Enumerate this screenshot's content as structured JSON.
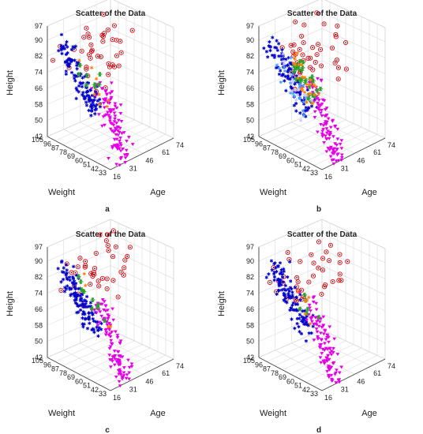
{
  "chart_data": [
    {
      "type": "scatter",
      "projection": "3d",
      "title": "Scatter of the Data",
      "panel_label": "a",
      "xlabel": "Age",
      "ylabel": "Weight",
      "zlabel": "Height",
      "x_ticks": [
        16,
        31,
        46,
        61,
        74
      ],
      "y_ticks": [
        33,
        42,
        51,
        60,
        69,
        78,
        87,
        96,
        105
      ],
      "z_ticks": [
        42,
        50,
        58,
        66,
        74,
        82,
        90,
        97
      ],
      "xlim": [
        16,
        74
      ],
      "ylim": [
        33,
        105
      ],
      "zlim": [
        42,
        97
      ],
      "grid": true,
      "series": [
        {
          "marker": "circled-dot",
          "color": "#e8000b",
          "count": 40
        },
        {
          "marker": "asterisk",
          "color": "#0000c8",
          "count": 120
        },
        {
          "marker": "triangle-down",
          "color": "#e600e6",
          "count": 110
        },
        {
          "marker": "star",
          "color": "#2ca02c",
          "count": 8
        },
        {
          "marker": "asterisk",
          "color": "#ff7f0e",
          "count": 8
        }
      ]
    },
    {
      "type": "scatter",
      "projection": "3d",
      "title": "Scatter of the Data",
      "panel_label": "b",
      "xlabel": "Age",
      "ylabel": "Weight",
      "zlabel": "Height",
      "x_ticks": [
        16,
        31,
        46,
        61,
        74
      ],
      "y_ticks": [
        33,
        42,
        51,
        60,
        69,
        78,
        87,
        96,
        105
      ],
      "z_ticks": [
        42,
        50,
        58,
        66,
        74,
        82,
        90,
        97
      ],
      "xlim": [
        16,
        74
      ],
      "ylim": [
        33,
        105
      ],
      "zlim": [
        42,
        97
      ],
      "grid": true,
      "series": [
        {
          "marker": "circled-dot",
          "color": "#e8000b",
          "count": 45
        },
        {
          "marker": "asterisk",
          "color": "#0000c8",
          "count": 100
        },
        {
          "marker": "triangle-down",
          "color": "#e600e6",
          "count": 110
        },
        {
          "marker": "star",
          "color": "#2ca02c",
          "count": 30
        },
        {
          "marker": "asterisk",
          "color": "#ff7f0e",
          "count": 25
        },
        {
          "marker": "asterisk",
          "color": "#4aa3ff",
          "count": 20
        },
        {
          "marker": "asterisk",
          "color": "#c7c7ff",
          "count": 15
        }
      ]
    },
    {
      "type": "scatter",
      "projection": "3d",
      "title": "Scatter of the Data",
      "panel_label": "c",
      "xlabel": "Age",
      "ylabel": "Weight",
      "zlabel": "Height",
      "x_ticks": [
        16,
        31,
        46,
        61,
        74
      ],
      "y_ticks": [
        33,
        42,
        51,
        60,
        69,
        78,
        87,
        96,
        105
      ],
      "z_ticks": [
        42,
        50,
        58,
        66,
        74,
        82,
        90,
        97
      ],
      "xlim": [
        16,
        74
      ],
      "ylim": [
        33,
        105
      ],
      "zlim": [
        42,
        97
      ],
      "grid": true,
      "series": [
        {
          "marker": "circled-dot",
          "color": "#e8000b",
          "count": 40
        },
        {
          "marker": "asterisk",
          "color": "#0000c8",
          "count": 120
        },
        {
          "marker": "triangle-down",
          "color": "#e600e6",
          "count": 110
        },
        {
          "marker": "star",
          "color": "#2ca02c",
          "count": 10
        },
        {
          "marker": "asterisk",
          "color": "#ff7f0e",
          "count": 4
        }
      ]
    },
    {
      "type": "scatter",
      "projection": "3d",
      "title": "Scatter of the Data",
      "panel_label": "d",
      "xlabel": "Age",
      "ylabel": "Weight",
      "zlabel": "Height",
      "x_ticks": [
        16,
        31,
        46,
        61,
        74
      ],
      "y_ticks": [
        33,
        42,
        51,
        60,
        69,
        78,
        87,
        96,
        105
      ],
      "z_ticks": [
        42,
        50,
        58,
        66,
        74,
        82,
        90,
        97
      ],
      "xlim": [
        16,
        74
      ],
      "ylim": [
        33,
        105
      ],
      "zlim": [
        42,
        97
      ],
      "grid": true,
      "series": [
        {
          "marker": "circled-dot",
          "color": "#e8000b",
          "count": 40
        },
        {
          "marker": "asterisk",
          "color": "#0000c8",
          "count": 115
        },
        {
          "marker": "triangle-down",
          "color": "#e600e6",
          "count": 110
        },
        {
          "marker": "star",
          "color": "#2ca02c",
          "count": 6
        },
        {
          "marker": "asterisk",
          "color": "#ff7f0e",
          "count": 6
        }
      ]
    }
  ]
}
